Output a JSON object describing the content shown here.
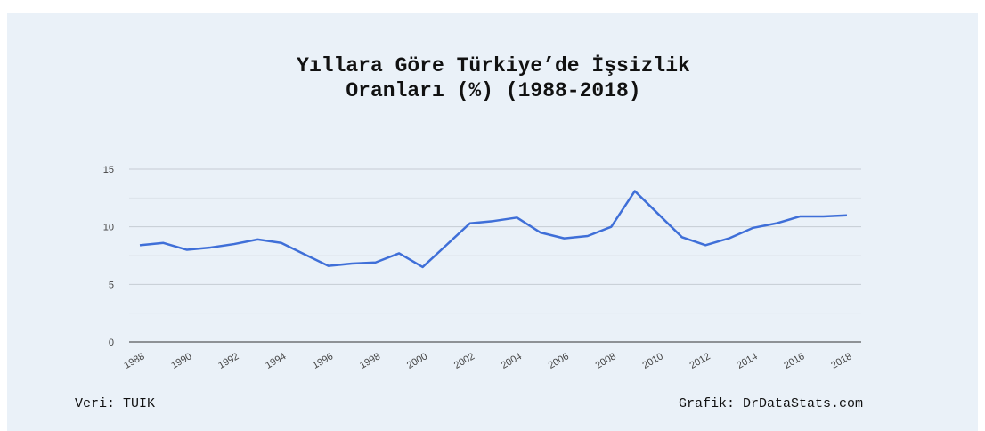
{
  "chart_data": {
    "type": "line",
    "title": "Yıllara Göre Türkiye’de İşsizlik Oranları (%) (1988-2018)",
    "source": "Veri: TUIK",
    "credit": "Grafik: DrDataStats.com",
    "x": [
      1988,
      1989,
      1990,
      1991,
      1992,
      1993,
      1994,
      1995,
      1996,
      1997,
      1998,
      1999,
      2000,
      2001,
      2002,
      2003,
      2004,
      2005,
      2006,
      2007,
      2008,
      2009,
      2010,
      2011,
      2012,
      2013,
      2014,
      2015,
      2016,
      2017,
      2018
    ],
    "series": [
      {
        "color": "#3f6fd8",
        "values": [
          8.4,
          8.6,
          8.0,
          8.2,
          8.5,
          8.9,
          8.6,
          7.6,
          6.6,
          6.8,
          6.9,
          7.7,
          6.5,
          8.4,
          10.3,
          10.5,
          10.8,
          9.5,
          9.0,
          9.2,
          10.0,
          13.1,
          11.1,
          9.1,
          8.4,
          9.0,
          9.9,
          10.3,
          10.9,
          10.9,
          11.0
        ]
      }
    ],
    "xlim": [
      1988,
      2018
    ],
    "xticks": [
      1988,
      1990,
      1992,
      1994,
      1996,
      1998,
      2000,
      2002,
      2004,
      2006,
      2008,
      2010,
      2012,
      2014,
      2016,
      2018
    ],
    "ylim": [
      0,
      15
    ],
    "yticks": [
      0,
      5,
      10,
      15
    ],
    "minor_yticks": [
      2.5,
      7.5,
      12.5
    ],
    "grid": true
  }
}
